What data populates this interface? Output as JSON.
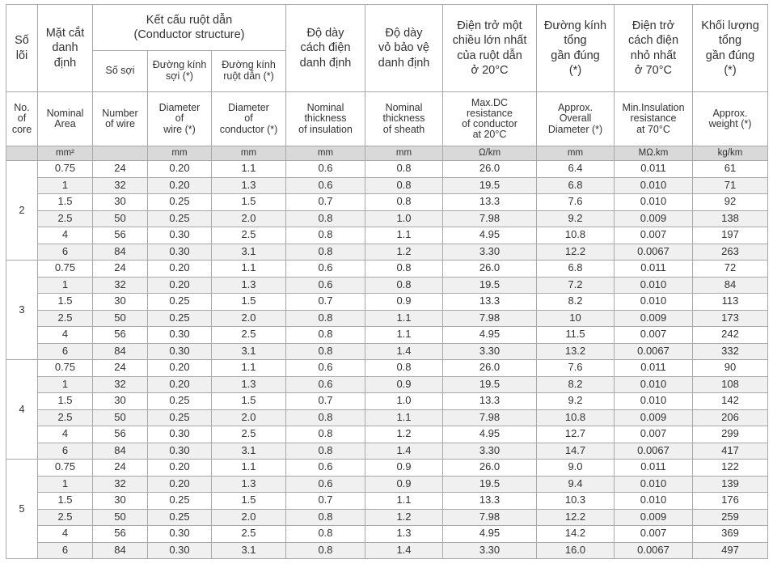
{
  "header": {
    "vi": [
      "Số\nlõi",
      "Mặt cắt\ndanh\nđịnh",
      "Kết cấu ruột dẫn\n(Conductor structure)",
      "Số sợi",
      "Đường kính\nsợi (*)",
      "Đường kính\nruột dẫn (*)",
      "Độ dày\ncách điện\ndanh định",
      "Độ dày\nvỏ bảo vệ\ndanh định",
      "Điện trở một\nchiều lớn nhất\ncủa ruột dẫn\nở 20°C",
      "Đường kính\ntổng\ngần đúng\n(*)",
      "Điện trở\ncách điện\nnhỏ nhất\nở 70°C",
      "Khối lượng\ntổng\ngần đúng\n(*)"
    ],
    "en": [
      "No.\nof\ncore",
      "Nominal\nArea",
      "Number\nof wire",
      "Diameter\nof\nwire (*)",
      "Diameter\nof\nconductor (*)",
      "Nominal\nthickness\nof insulation",
      "Nominal\nthickness\nof sheath",
      "Max.DC\nresistance\nof conductor\nat 20°C",
      "Approx.\nOverall\nDiameter (*)",
      "Min.Insulation\nresistance\nat 70°C",
      "Approx.\nweight (*)"
    ],
    "units": [
      "mm²",
      "mm",
      "mm",
      "mm",
      "mm",
      "Ω/km",
      "mm",
      "MΩ.km",
      "kg/km"
    ]
  },
  "groups": [
    {
      "core": "2",
      "rows": [
        [
          "0.75",
          "24",
          "0.20",
          "1.1",
          "0.6",
          "0.8",
          "26.0",
          "6.4",
          "0.011",
          "61"
        ],
        [
          "1",
          "32",
          "0.20",
          "1.3",
          "0.6",
          "0.8",
          "19.5",
          "6.8",
          "0.010",
          "71"
        ],
        [
          "1.5",
          "30",
          "0.25",
          "1.5",
          "0.7",
          "0.8",
          "13.3",
          "7.6",
          "0.010",
          "92"
        ],
        [
          "2.5",
          "50",
          "0.25",
          "2.0",
          "0.8",
          "1.0",
          "7.98",
          "9.2",
          "0.009",
          "138"
        ],
        [
          "4",
          "56",
          "0.30",
          "2.5",
          "0.8",
          "1.1",
          "4.95",
          "10.8",
          "0.007",
          "197"
        ],
        [
          "6",
          "84",
          "0.30",
          "3.1",
          "0.8",
          "1.2",
          "3.30",
          "12.2",
          "0.0067",
          "263"
        ]
      ]
    },
    {
      "core": "3",
      "rows": [
        [
          "0.75",
          "24",
          "0.20",
          "1.1",
          "0.6",
          "0.8",
          "26.0",
          "6.8",
          "0.011",
          "72"
        ],
        [
          "1",
          "32",
          "0.20",
          "1.3",
          "0.6",
          "0.8",
          "19.5",
          "7.2",
          "0.010",
          "84"
        ],
        [
          "1.5",
          "30",
          "0.25",
          "1.5",
          "0.7",
          "0.9",
          "13.3",
          "8.2",
          "0.010",
          "113"
        ],
        [
          "2.5",
          "50",
          "0.25",
          "2.0",
          "0.8",
          "1.1",
          "7.98",
          "10",
          "0.009",
          "173"
        ],
        [
          "4",
          "56",
          "0.30",
          "2.5",
          "0.8",
          "1.1",
          "4.95",
          "11.5",
          "0.007",
          "242"
        ],
        [
          "6",
          "84",
          "0.30",
          "3.1",
          "0.8",
          "1.4",
          "3.30",
          "13.2",
          "0.0067",
          "332"
        ]
      ]
    },
    {
      "core": "4",
      "rows": [
        [
          "0.75",
          "24",
          "0.20",
          "1.1",
          "0.6",
          "0.8",
          "26.0",
          "7.6",
          "0.011",
          "90"
        ],
        [
          "1",
          "32",
          "0.20",
          "1.3",
          "0.6",
          "0.9",
          "19.5",
          "8.2",
          "0.010",
          "108"
        ],
        [
          "1.5",
          "30",
          "0.25",
          "1.5",
          "0.7",
          "1.0",
          "13.3",
          "9.2",
          "0.010",
          "142"
        ],
        [
          "2.5",
          "50",
          "0.25",
          "2.0",
          "0.8",
          "1.1",
          "7.98",
          "10.8",
          "0.009",
          "206"
        ],
        [
          "4",
          "56",
          "0.30",
          "2.5",
          "0.8",
          "1.2",
          "4.95",
          "12.7",
          "0.007",
          "299"
        ],
        [
          "6",
          "84",
          "0.30",
          "3.1",
          "0.8",
          "1.4",
          "3.30",
          "14.7",
          "0.0067",
          "417"
        ]
      ]
    },
    {
      "core": "5",
      "rows": [
        [
          "0.75",
          "24",
          "0.20",
          "1.1",
          "0.6",
          "0.9",
          "26.0",
          "9.0",
          "0.011",
          "122"
        ],
        [
          "1",
          "32",
          "0.20",
          "1.3",
          "0.6",
          "0.9",
          "19.5",
          "9.4",
          "0.010",
          "139"
        ],
        [
          "1.5",
          "30",
          "0.25",
          "1.5",
          "0.7",
          "1.1",
          "13.3",
          "10.3",
          "0.010",
          "176"
        ],
        [
          "2.5",
          "50",
          "0.25",
          "2.0",
          "0.8",
          "1.2",
          "7.98",
          "12.2",
          "0.009",
          "259"
        ],
        [
          "4",
          "56",
          "0.30",
          "2.5",
          "0.8",
          "1.3",
          "4.95",
          "14.2",
          "0.007",
          "369"
        ],
        [
          "6",
          "84",
          "0.30",
          "3.1",
          "0.8",
          "1.4",
          "3.30",
          "16.0",
          "0.0067",
          "497"
        ]
      ]
    }
  ]
}
